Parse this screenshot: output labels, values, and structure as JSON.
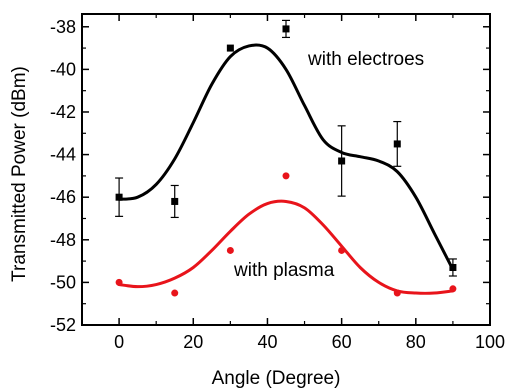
{
  "chart_data": {
    "type": "scatter",
    "xlabel": "Angle (Degree)",
    "ylabel": "Transmitted Power (dBm)",
    "xlim": [
      -10,
      100
    ],
    "ylim": [
      -52,
      -37.4
    ],
    "x_ticks": [
      0,
      20,
      40,
      60,
      80,
      100
    ],
    "x_tick_labels": [
      "0",
      "20",
      "40",
      "60",
      "80",
      "100"
    ],
    "y_ticks": [
      -52,
      -50,
      -48,
      -46,
      -44,
      -42,
      -40,
      -38
    ],
    "y_tick_labels": [
      "-52",
      "-50",
      "-48",
      "-46",
      "-44",
      "-42",
      "-40",
      "-38"
    ],
    "grid": false,
    "series": [
      {
        "label": "with electroes",
        "color": "#000000",
        "marker": "square",
        "x": [
          0,
          15,
          30,
          45,
          60,
          75,
          90
        ],
        "y": [
          -46.0,
          -46.2,
          -39.0,
          -38.1,
          -44.3,
          -43.5,
          -49.3
        ],
        "error": [
          0.9,
          0.75,
          null,
          0.4,
          1.65,
          1.05,
          0.4
        ],
        "fit_curve": {
          "x": [
            0,
            5,
            10,
            15,
            20,
            25,
            30,
            35,
            40,
            45,
            50,
            55,
            60,
            65,
            70,
            75,
            80,
            85,
            90
          ],
          "y": [
            -46.1,
            -46.0,
            -45.4,
            -44.2,
            -42.5,
            -40.7,
            -39.4,
            -38.9,
            -39.0,
            -40.0,
            -41.7,
            -43.3,
            -43.9,
            -44.1,
            -44.3,
            -44.8,
            -46.0,
            -47.7,
            -49.4
          ]
        }
      },
      {
        "label": "with plasma",
        "color": "#e8141b",
        "marker": "circle",
        "x": [
          0,
          15,
          30,
          45,
          60,
          75,
          90
        ],
        "y": [
          -50.0,
          -50.5,
          -48.5,
          -45.0,
          -48.5,
          -50.5,
          -50.3
        ],
        "fit_curve": {
          "x": [
            0,
            5,
            10,
            15,
            20,
            25,
            30,
            35,
            40,
            45,
            50,
            55,
            60,
            65,
            70,
            75,
            80,
            85,
            90
          ],
          "y": [
            -50.1,
            -50.2,
            -50.1,
            -49.8,
            -49.3,
            -48.5,
            -47.6,
            -46.8,
            -46.3,
            -46.2,
            -46.5,
            -47.3,
            -48.3,
            -49.3,
            -50.0,
            -50.4,
            -50.5,
            -50.5,
            -50.4
          ]
        }
      }
    ]
  }
}
